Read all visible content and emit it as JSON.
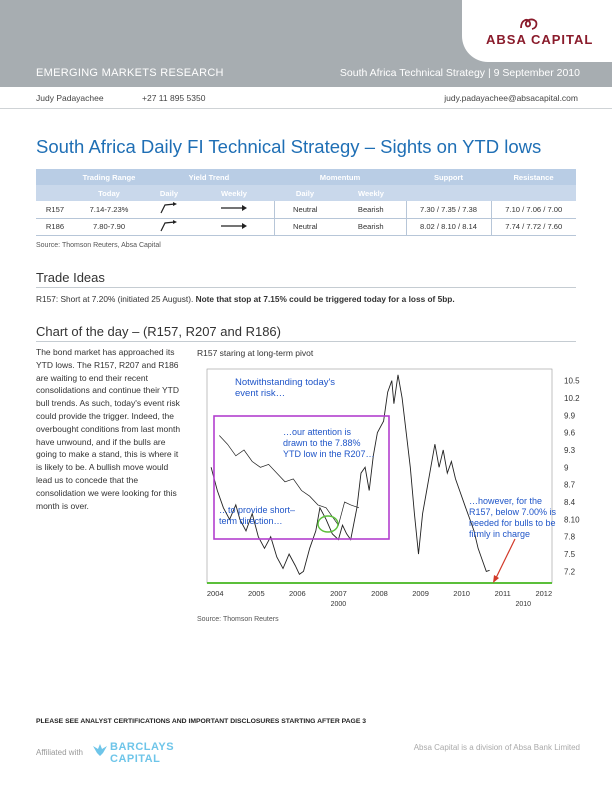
{
  "header": {
    "logo_text": "ABSA CAPITAL",
    "section": "EMERGING MARKETS RESEARCH",
    "report": "South Africa Technical Strategy | 9 September 2010",
    "colors": {
      "band": "#a7adb1",
      "logo": "#8a1b2b",
      "accent": "#1f6fb5"
    }
  },
  "contact": {
    "name": "Judy Padayachee",
    "phone": "+27 11 895 5350",
    "email": "judy.padayachee@absacapital.com"
  },
  "title": "South Africa Daily FI Technical Strategy – Sights on YTD lows",
  "table": {
    "group_headers": [
      "Trading Range",
      "Yield Trend",
      "Momentum",
      "Support",
      "Resistance"
    ],
    "sub_headers": [
      "Today",
      "Daily",
      "Weekly",
      "Daily",
      "Weekly"
    ],
    "rows": [
      {
        "bond": "R157",
        "range": "7.14-7.23%",
        "trend_daily": "up-arrow-icon",
        "trend_weekly": "right-arrow-icon",
        "mom_daily": "Neutral",
        "mom_weekly": "Bearish",
        "support": "7.30 / 7.35 / 7.38",
        "resistance": "7.10 / 7.06 / 7.00"
      },
      {
        "bond": "R186",
        "range": "7.80-7.90",
        "trend_daily": "up-arrow-icon",
        "trend_weekly": "right-arrow-icon",
        "mom_daily": "Neutral",
        "mom_weekly": "Bearish",
        "support": "8.02 / 8.10 / 8.14",
        "resistance": "7.74 / 7.72 / 7.60"
      }
    ],
    "source": "Source: Thomson Reuters, Absa Capital"
  },
  "trade_ideas": {
    "heading": "Trade Ideas",
    "text": "R157: Short at 7.20% (initiated 25 August). ",
    "bold": "Note that stop at 7.15% could be triggered today for a loss of 5bp."
  },
  "chart_section": {
    "heading": "Chart of the day – (R157, R207 and R186)",
    "body": "The bond market has approached its YTD lows. The R157, R207 and R186 are waiting to end their recent consolidations and continue their YTD bull trends. As such, today's event risk could provide the trigger. Indeed, the overbought conditions from last month have unwound, and if the bulls are going to make a stand, this is where it is likely to be. A bullish move would lead us to concede that the consolidation we were looking for this month is over.",
    "chart_title": "R157 staring at long-term pivot",
    "source": "Source: Thomson Reuters"
  },
  "chart_data": {
    "type": "line",
    "ylim": [
      7.0,
      10.7
    ],
    "yticks": [
      "10.5",
      "10.2",
      "9.9",
      "9.6",
      "9.3",
      "9",
      "8.7",
      "8.4",
      "8.10",
      "7.8",
      "7.5",
      "7.2"
    ],
    "xticks": [
      "2004",
      "2005",
      "2006",
      "2007",
      "2008",
      "2009",
      "2010",
      "2011",
      "2012"
    ],
    "xsub": [
      "2000",
      "2010"
    ],
    "annotations": [
      "Notwithstanding today's event risk…",
      "…our attention is drawn to the 7.88% YTD low in the R207…",
      "…to provide short-term direction…",
      "…however, for the R157, below 7.00% is needed for bulls to be firmly in charge"
    ],
    "support_level": 7.0,
    "series": [
      {
        "values": [
          [
            2003.9,
            9.0
          ],
          [
            2004.05,
            8.6
          ],
          [
            2004.2,
            8.3
          ],
          [
            2004.35,
            8.1
          ],
          [
            2004.5,
            8.35
          ],
          [
            2004.6,
            8.1
          ],
          [
            2004.75,
            7.9
          ],
          [
            2004.9,
            8.2
          ],
          [
            2005.05,
            7.8
          ],
          [
            2005.2,
            7.6
          ],
          [
            2005.35,
            7.8
          ],
          [
            2005.5,
            7.45
          ],
          [
            2005.65,
            7.25
          ],
          [
            2005.8,
            7.5
          ],
          [
            2005.95,
            7.3
          ],
          [
            2006.05,
            7.15
          ],
          [
            2006.15,
            7.2
          ],
          [
            2006.3,
            7.6
          ],
          [
            2006.45,
            7.9
          ],
          [
            2006.55,
            8.3
          ],
          [
            2006.7,
            8.1
          ],
          [
            2006.85,
            7.85
          ],
          [
            2007.0,
            7.75
          ],
          [
            2007.1,
            8.0
          ],
          [
            2007.2,
            7.85
          ],
          [
            2007.3,
            7.75
          ],
          [
            2007.45,
            8.3
          ],
          [
            2007.55,
            8.9
          ],
          [
            2007.65,
            9.0
          ],
          [
            2007.75,
            8.6
          ],
          [
            2007.85,
            9.2
          ],
          [
            2007.95,
            9.6
          ],
          [
            2008.1,
            9.8
          ],
          [
            2008.2,
            10.3
          ],
          [
            2008.3,
            10.5
          ],
          [
            2008.35,
            10.1
          ],
          [
            2008.45,
            10.6
          ],
          [
            2008.55,
            10.2
          ],
          [
            2008.65,
            9.6
          ],
          [
            2008.75,
            9.0
          ],
          [
            2008.85,
            8.2
          ],
          [
            2008.95,
            7.5
          ],
          [
            2009.05,
            8.2
          ],
          [
            2009.15,
            8.6
          ],
          [
            2009.25,
            9.0
          ],
          [
            2009.35,
            9.4
          ],
          [
            2009.45,
            9.0
          ],
          [
            2009.55,
            9.3
          ],
          [
            2009.65,
            8.9
          ],
          [
            2009.75,
            9.1
          ],
          [
            2009.85,
            8.8
          ],
          [
            2009.95,
            8.6
          ],
          [
            2010.1,
            8.3
          ],
          [
            2010.2,
            8.1
          ],
          [
            2010.3,
            7.9
          ],
          [
            2010.4,
            7.6
          ],
          [
            2010.5,
            7.4
          ],
          [
            2010.6,
            7.2
          ],
          [
            2010.68,
            7.22
          ]
        ]
      },
      {
        "values": [
          [
            2004.1,
            9.55
          ],
          [
            2004.3,
            9.4
          ],
          [
            2004.5,
            9.2
          ],
          [
            2004.7,
            9.3
          ],
          [
            2004.9,
            9.1
          ],
          [
            2005.1,
            9.0
          ],
          [
            2005.3,
            9.05
          ],
          [
            2005.5,
            8.9
          ],
          [
            2005.7,
            8.75
          ],
          [
            2005.9,
            8.8
          ],
          [
            2006.1,
            8.6
          ],
          [
            2006.3,
            8.5
          ],
          [
            2006.5,
            8.35
          ],
          [
            2006.7,
            8.3
          ],
          [
            2006.9,
            8.1
          ],
          [
            2007.0,
            8.0
          ],
          [
            2007.15,
            8.4
          ],
          [
            2007.3,
            8.35
          ],
          [
            2007.5,
            8.3
          ]
        ]
      }
    ]
  }
}
